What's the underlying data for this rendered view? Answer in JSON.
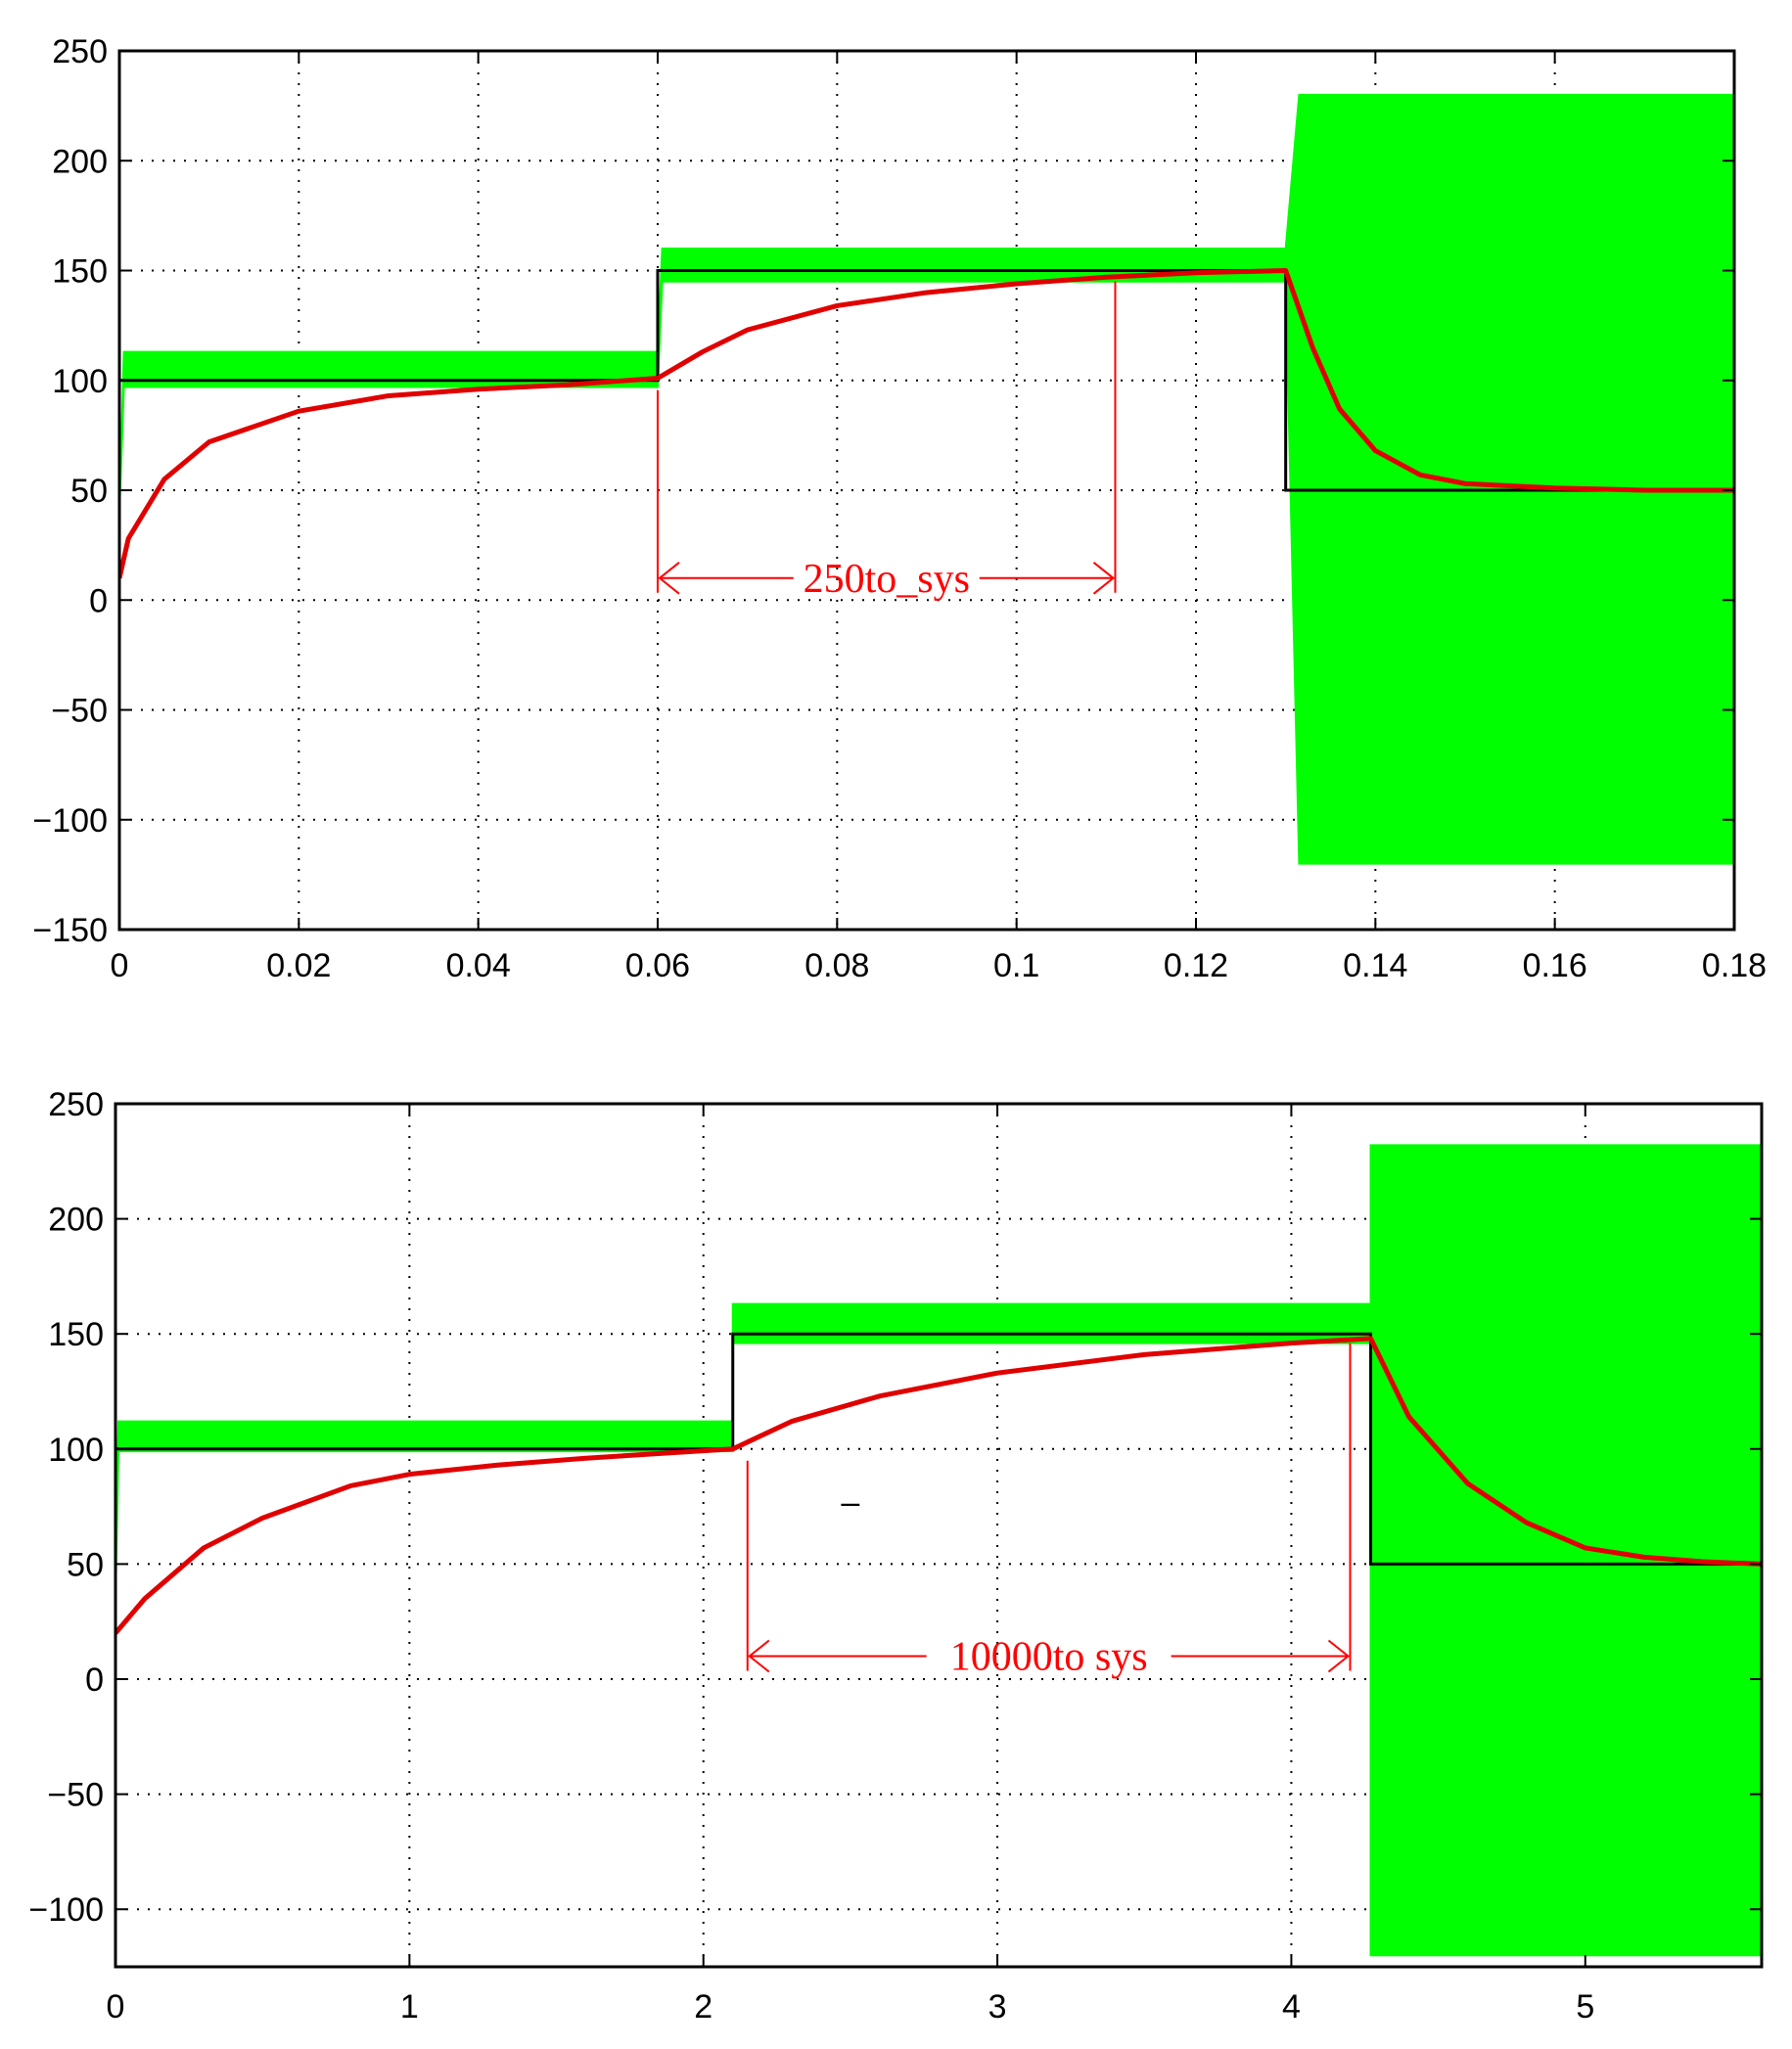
{
  "chart_data": [
    {
      "type": "line",
      "title": "",
      "xlabel": "",
      "ylabel": "",
      "xlim": [
        0,
        0.18
      ],
      "ylim": [
        -150,
        250
      ],
      "xticks": [
        "0",
        "0.02",
        "0.04",
        "0.06",
        "0.08",
        "0.1",
        "0.12",
        "0.14",
        "0.16",
        "0.18"
      ],
      "yticks": [
        "250",
        "200",
        "150",
        "100",
        "50",
        "0",
        "−50",
        "−100",
        "−150"
      ],
      "grid": true,
      "series": [
        {
          "role": "reference",
          "color": "#000000",
          "x": [
            0,
            0.06,
            0.06,
            0.13,
            0.13,
            0.18
          ],
          "y": [
            100,
            100,
            150,
            150,
            50,
            50
          ]
        },
        {
          "role": "filtered",
          "color": "#e00000",
          "x": [
            0,
            0.001,
            0.005,
            0.01,
            0.02,
            0.03,
            0.04,
            0.05,
            0.06,
            0.065,
            0.07,
            0.08,
            0.09,
            0.1,
            0.11,
            0.12,
            0.13,
            0.133,
            0.136,
            0.14,
            0.145,
            0.15,
            0.16,
            0.17,
            0.18
          ],
          "y": [
            10,
            28,
            55,
            72,
            86,
            93,
            96,
            98,
            101,
            113,
            123,
            134,
            140,
            144,
            147,
            149,
            150,
            115,
            87,
            68,
            57,
            53,
            51,
            50,
            50
          ]
        },
        {
          "role": "oscillating-band",
          "color": "#00ff00",
          "x": [
            0,
            0.0005,
            0.06,
            0.0605,
            0.13,
            0.1315,
            0.18
          ],
          "upper": [
            40,
            113,
            113,
            160,
            160,
            230,
            230
          ],
          "lower": [
            40,
            97,
            97,
            145,
            145,
            -120,
            -120
          ]
        }
      ],
      "annotations": [
        {
          "text": "250to_sys",
          "x_from": 0.06,
          "x_to": 0.111,
          "y": 10
        }
      ]
    },
    {
      "type": "line",
      "title": "",
      "xlabel": "",
      "ylabel": "",
      "xlim": [
        0,
        5.6
      ],
      "ylim": [
        -125,
        250
      ],
      "xticks": [
        "0",
        "1",
        "2",
        "3",
        "4",
        "5"
      ],
      "yticks": [
        "250",
        "200",
        "150",
        "100",
        "50",
        "0",
        "−50",
        "−100"
      ],
      "grid": true,
      "series": [
        {
          "role": "reference",
          "color": "#000000",
          "x": [
            0,
            2.1,
            2.1,
            4.27,
            4.27,
            5.6
          ],
          "y": [
            100,
            100,
            150,
            150,
            50,
            50
          ]
        },
        {
          "role": "filtered",
          "color": "#e00000",
          "x": [
            0,
            0.1,
            0.3,
            0.5,
            0.8,
            1.0,
            1.3,
            1.6,
            2.1,
            2.3,
            2.6,
            3.0,
            3.5,
            4.0,
            4.27,
            4.4,
            4.6,
            4.8,
            5.0,
            5.2,
            5.4,
            5.6
          ],
          "y": [
            20,
            35,
            57,
            70,
            84,
            89,
            93,
            96,
            100,
            112,
            123,
            133,
            141,
            146,
            148,
            114,
            85,
            68,
            57,
            53,
            51,
            50
          ]
        },
        {
          "role": "oscillating-band",
          "color": "#00ff00",
          "x": [
            0,
            0.01,
            2.1,
            2.1,
            4.27,
            4.27,
            5.6
          ],
          "upper": [
            35,
            112,
            112,
            163,
            163,
            232,
            232
          ],
          "lower": [
            35,
            99,
            99,
            146,
            146,
            -120,
            -120
          ]
        }
      ],
      "annotations": [
        {
          "text": "10000to  sys",
          "x_from": 2.15,
          "x_to": 4.2,
          "y": 10
        },
        {
          "text": "–",
          "x": 2.5,
          "y": 72
        }
      ]
    }
  ]
}
